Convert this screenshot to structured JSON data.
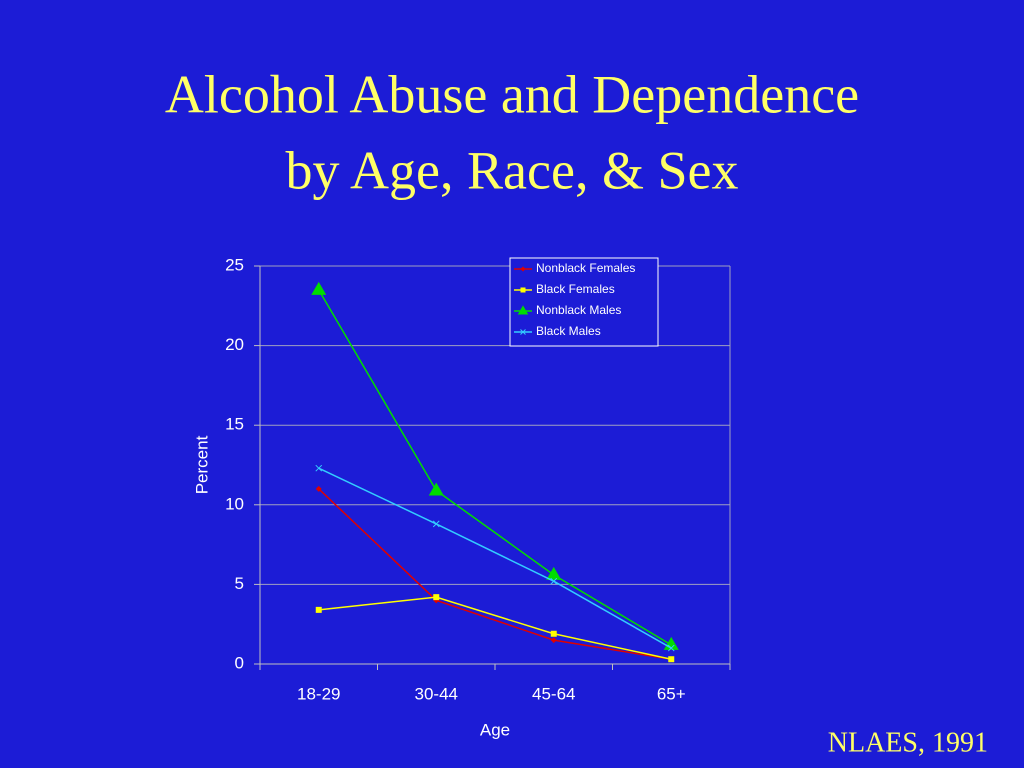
{
  "chart_data": {
    "type": "line",
    "title": [
      "Alcohol Abuse and Dependence",
      "by Age, Race, & Sex"
    ],
    "x_label": "Age",
    "y_label": "Percent",
    "source": "NLAES, 1991",
    "categories": [
      "18-29",
      "30-44",
      "45-64",
      "65+"
    ],
    "series": [
      {
        "name": "Nonblack Females",
        "color": "#e00000",
        "marker": "diamond",
        "values": [
          11.0,
          4.0,
          1.5,
          0.3
        ]
      },
      {
        "name": "Black Females",
        "color": "#ffff00",
        "marker": "square",
        "values": [
          3.4,
          4.2,
          1.9,
          0.3
        ]
      },
      {
        "name": "Nonblack Males",
        "color": "#00dd00",
        "marker": "triangle",
        "values": [
          23.5,
          10.9,
          5.6,
          1.2
        ]
      },
      {
        "name": "Black Males",
        "color": "#33ccff",
        "marker": "x",
        "values": [
          12.3,
          8.8,
          5.2,
          1.0
        ]
      }
    ],
    "ylim": [
      0,
      25
    ],
    "yticks": [
      0,
      5,
      10,
      15,
      20,
      25
    ],
    "grid": true,
    "legend": "top-right"
  }
}
